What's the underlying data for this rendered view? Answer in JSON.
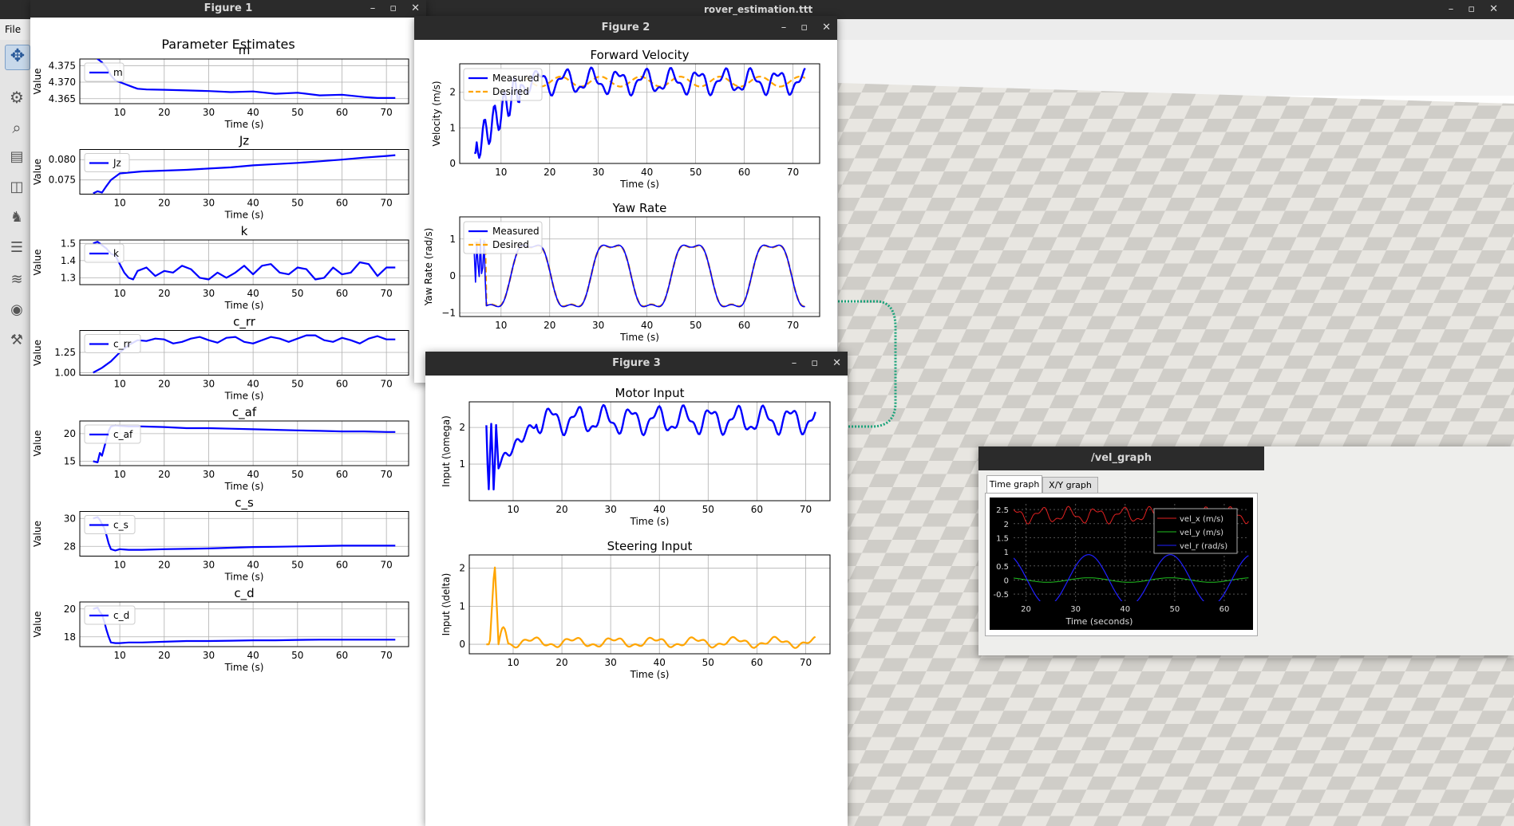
{
  "sim_window": {
    "title": "rover_estimation.ttt",
    "menu": [
      "File"
    ],
    "toolbar_icons": [
      "move-icon",
      "rotate-icon",
      "zoom-icon",
      "scene-icon",
      "object-icon",
      "model-icon",
      "hierarchy-icon",
      "layers-icon",
      "record-icon",
      "settings-icon"
    ]
  },
  "figure1": {
    "title": "Figure 1",
    "suptitle": "Parameter Estimates",
    "xlabel": "Time (s)",
    "ylabel": "Value",
    "xticks": [
      10,
      20,
      30,
      40,
      50,
      60,
      70
    ],
    "plots": [
      {
        "title": "m",
        "legend": "m",
        "yticks": [
          "4.365",
          "4.370",
          "4.375"
        ],
        "ylim": [
          4.3635,
          4.377
        ],
        "yvals": [
          4.365,
          4.37,
          4.375
        ],
        "data": {
          "x": [
            4,
            5,
            6,
            7,
            8,
            9,
            10,
            11,
            12,
            13,
            14,
            16,
            20,
            25,
            30,
            35,
            40,
            45,
            50,
            55,
            60,
            65,
            68,
            72
          ],
          "y": [
            4.378,
            4.377,
            4.376,
            4.3745,
            4.372,
            4.3705,
            4.37,
            4.3695,
            4.369,
            4.3685,
            4.368,
            4.3678,
            4.3677,
            4.3675,
            4.3673,
            4.367,
            4.3672,
            4.3665,
            4.3668,
            4.366,
            4.3662,
            4.3655,
            4.3652,
            4.3652
          ]
        }
      },
      {
        "title": "Jz",
        "legend": "Jz",
        "yticks": [
          "0.075",
          "0.080"
        ],
        "ylim": [
          0.0715,
          0.0825
        ],
        "yvals": [
          0.075,
          0.08
        ],
        "data": {
          "x": [
            4,
            5,
            6,
            7,
            8,
            10,
            12,
            15,
            20,
            25,
            30,
            35,
            40,
            45,
            50,
            55,
            60,
            65,
            70,
            72
          ],
          "y": [
            0.0717,
            0.0722,
            0.0719,
            0.0735,
            0.075,
            0.0766,
            0.0768,
            0.0771,
            0.0773,
            0.0775,
            0.0778,
            0.0781,
            0.0786,
            0.0789,
            0.0792,
            0.0796,
            0.08,
            0.0805,
            0.0809,
            0.0811
          ]
        }
      },
      {
        "title": "k",
        "legend": "k",
        "yticks": [
          "1.3",
          "1.4",
          "1.5"
        ],
        "ylim": [
          1.26,
          1.52
        ],
        "yvals": [
          1.3,
          1.4,
          1.5
        ],
        "data": {
          "x": [
            4,
            5,
            6,
            7,
            8,
            9,
            10,
            11,
            12,
            13,
            14,
            16,
            18,
            20,
            22,
            24,
            26,
            28,
            30,
            32,
            34,
            36,
            38,
            40,
            42,
            44,
            46,
            48,
            50,
            52,
            54,
            56,
            58,
            60,
            62,
            64,
            66,
            68,
            70,
            72
          ],
          "y": [
            1.5,
            1.51,
            1.49,
            1.47,
            1.44,
            1.43,
            1.38,
            1.33,
            1.3,
            1.29,
            1.34,
            1.36,
            1.31,
            1.34,
            1.33,
            1.37,
            1.35,
            1.3,
            1.29,
            1.33,
            1.3,
            1.33,
            1.37,
            1.32,
            1.37,
            1.38,
            1.33,
            1.32,
            1.36,
            1.35,
            1.29,
            1.3,
            1.36,
            1.32,
            1.33,
            1.39,
            1.38,
            1.31,
            1.36,
            1.36
          ]
        }
      },
      {
        "title": "c_rr",
        "legend": "c_rr",
        "yticks": [
          "1.00",
          "1.25"
        ],
        "ylim": [
          0.97,
          1.52
        ],
        "yvals": [
          1.0,
          1.25
        ],
        "data": {
          "x": [
            4,
            6,
            8,
            10,
            12,
            14,
            16,
            18,
            20,
            22,
            24,
            26,
            28,
            30,
            32,
            34,
            36,
            38,
            40,
            42,
            44,
            46,
            48,
            50,
            52,
            54,
            56,
            58,
            60,
            62,
            64,
            66,
            68,
            70,
            72
          ],
          "y": [
            1.0,
            1.06,
            1.14,
            1.25,
            1.34,
            1.4,
            1.39,
            1.42,
            1.41,
            1.36,
            1.38,
            1.42,
            1.44,
            1.4,
            1.37,
            1.43,
            1.44,
            1.38,
            1.36,
            1.4,
            1.44,
            1.42,
            1.38,
            1.42,
            1.46,
            1.46,
            1.4,
            1.38,
            1.43,
            1.4,
            1.36,
            1.42,
            1.45,
            1.41,
            1.41
          ]
        }
      },
      {
        "title": "c_af",
        "legend": "c_af",
        "yticks": [
          "15",
          "20"
        ],
        "ylim": [
          14.2,
          22.3
        ],
        "yvals": [
          15,
          20
        ],
        "data": {
          "x": [
            4,
            5,
            5.5,
            6,
            6.5,
            7,
            7.5,
            8,
            9,
            10,
            12,
            15,
            20,
            25,
            30,
            35,
            40,
            45,
            50,
            55,
            60,
            65,
            70,
            72
          ],
          "y": [
            15.0,
            14.8,
            16.5,
            16.0,
            17.5,
            19.0,
            20.5,
            21.3,
            21.5,
            21.4,
            21.3,
            21.3,
            21.2,
            21.0,
            21.0,
            20.9,
            20.8,
            20.7,
            20.6,
            20.5,
            20.4,
            20.4,
            20.3,
            20.3
          ]
        }
      },
      {
        "title": "c_s",
        "legend": "c_s",
        "yticks": [
          "28",
          "30"
        ],
        "ylim": [
          27.3,
          30.5
        ],
        "yvals": [
          28,
          30
        ],
        "data": {
          "x": [
            4,
            5,
            5.5,
            6,
            6.5,
            7,
            7.5,
            8,
            9,
            10,
            12,
            15,
            20,
            25,
            30,
            35,
            40,
            45,
            50,
            55,
            60,
            65,
            70,
            72
          ],
          "y": [
            30.0,
            30.1,
            29.9,
            29.6,
            29.3,
            28.8,
            28.2,
            27.8,
            27.7,
            27.8,
            27.75,
            27.75,
            27.8,
            27.82,
            27.85,
            27.9,
            27.95,
            27.97,
            28.0,
            28.02,
            28.05,
            28.05,
            28.05,
            28.05
          ]
        }
      },
      {
        "title": "c_d",
        "legend": "c_d",
        "yticks": [
          "18",
          "20"
        ],
        "ylim": [
          17.3,
          20.5
        ],
        "yvals": [
          18,
          20
        ],
        "data": {
          "x": [
            4,
            5,
            5.5,
            6,
            6.5,
            7,
            7.5,
            8,
            9,
            10,
            12,
            15,
            20,
            25,
            30,
            35,
            40,
            45,
            50,
            55,
            60,
            65,
            70,
            72
          ],
          "y": [
            20.0,
            20.1,
            19.8,
            19.6,
            19.1,
            18.5,
            18.0,
            17.6,
            17.55,
            17.55,
            17.6,
            17.6,
            17.65,
            17.7,
            17.7,
            17.72,
            17.75,
            17.75,
            17.78,
            17.8,
            17.8,
            17.8,
            17.8,
            17.8
          ]
        }
      }
    ]
  },
  "figure2": {
    "title": "Figure 2",
    "xlabel": "Time (s)",
    "xticks": [
      10,
      20,
      30,
      40,
      50,
      60,
      70
    ],
    "plots": [
      {
        "title": "Forward Velocity",
        "ylabel": "Velocity (m/s)",
        "yticks": [
          "0",
          "1",
          "2"
        ],
        "yvals": [
          0,
          1,
          2
        ],
        "ylim": [
          0,
          2.8
        ],
        "legend": [
          "Measured",
          "Desired"
        ]
      },
      {
        "title": "Yaw Rate",
        "ylabel": "Yaw Rate (rad/s)",
        "yticks": [
          "−1",
          "0",
          "1"
        ],
        "yvals": [
          -1,
          0,
          1
        ],
        "ylim": [
          -1.1,
          1.6
        ],
        "legend": [
          "Measured",
          "Desired"
        ]
      }
    ]
  },
  "figure3": {
    "title": "Figure 3",
    "xlabel": "Time (s)",
    "xticks": [
      10,
      20,
      30,
      40,
      50,
      60,
      70
    ],
    "plots": [
      {
        "title": "Motor Input",
        "ylabel": "Input (\\omega)",
        "yticks": [
          "1",
          "2"
        ],
        "yvals": [
          1,
          2
        ],
        "ylim": [
          0,
          2.7
        ]
      },
      {
        "title": "Steering Input",
        "ylabel": "Input (\\delta)",
        "yticks": [
          "0",
          "1",
          "2"
        ],
        "yvals": [
          0,
          1,
          2
        ],
        "ylim": [
          -0.25,
          2.35
        ]
      }
    ]
  },
  "vel_graph": {
    "title": "/vel_graph",
    "tabs": [
      "Time graph",
      "X/Y graph"
    ],
    "xlabel": "Time (seconds)",
    "xticks": [
      20,
      30,
      40,
      50,
      60
    ],
    "yticks": [
      "2.5",
      "2",
      "1.5",
      "1",
      "0.5",
      "0",
      "-0.5"
    ],
    "yvals": [
      2.5,
      2,
      1.5,
      1,
      0.5,
      0,
      -0.5
    ],
    "legend": [
      {
        "label": "vel_x (m/s)",
        "color": "#e02020"
      },
      {
        "label": "vel_y (m/s)",
        "color": "#20c020"
      },
      {
        "label": "vel_r (rad/s)",
        "color": "#2020ff"
      }
    ]
  },
  "colors": {
    "measured": "#0000ff",
    "desired": "#ffa500",
    "steer": "#ffa500",
    "grid": "#b0b0b0"
  }
}
